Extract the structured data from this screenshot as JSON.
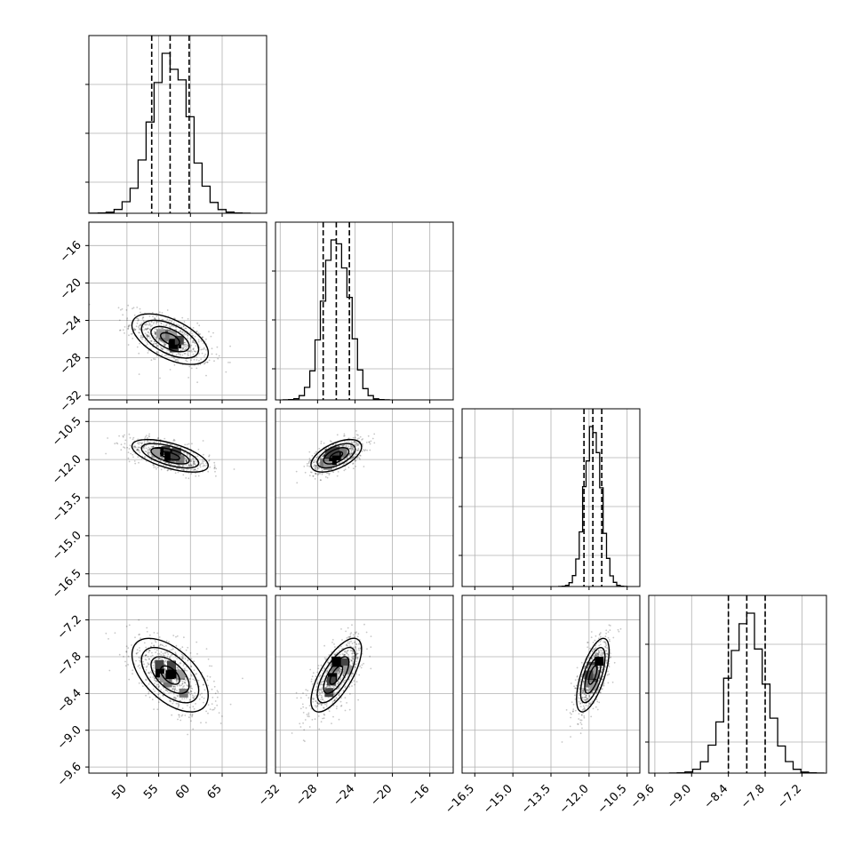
{
  "chart_data": {
    "type": "corner",
    "description_free": true,
    "parameters": [
      {
        "key": "p0",
        "range": [
          44,
          72
        ],
        "ticks": [
          50,
          55,
          60,
          65
        ],
        "tick_labels": [
          "50",
          "55",
          "60",
          "65"
        ],
        "mean": 56.8,
        "std": 3.0,
        "quantiles": [
          53.9,
          56.8,
          59.8
        ]
      },
      {
        "key": "p1",
        "range": [
          -32.5,
          -13.5
        ],
        "ticks": [
          -32,
          -28,
          -24,
          -20,
          -16
        ],
        "tick_labels": [
          "−32",
          "−28",
          "−24",
          "−20",
          "−16"
        ],
        "mean": -26.0,
        "std": 1.35,
        "quantiles": [
          -27.4,
          -26.0,
          -24.6
        ]
      },
      {
        "key": "p2",
        "range": [
          -17.0,
          -10.0
        ],
        "ticks": [
          -16.5,
          -15.0,
          -13.5,
          -12.0,
          -10.5
        ],
        "tick_labels": [
          "−16.5",
          "−15.0",
          "−13.5",
          "−12.0",
          "−10.5"
        ],
        "mean": -11.85,
        "std": 0.32,
        "quantiles": [
          -12.2,
          -11.85,
          -11.5
        ]
      },
      {
        "key": "p3",
        "range": [
          -9.7,
          -6.8
        ],
        "ticks": [
          -9.6,
          -9.0,
          -8.4,
          -7.8,
          -7.2
        ],
        "tick_labels": [
          "−9.6",
          "−9.0",
          "−8.4",
          "−7.8",
          "−7.2"
        ],
        "mean": -8.1,
        "std": 0.3,
        "quantiles": [
          -8.4,
          -8.1,
          -7.8
        ]
      }
    ],
    "correlations": [
      [
        1.0,
        -0.55,
        -0.6,
        -0.55
      ],
      [
        -0.55,
        1.0,
        0.55,
        0.7
      ],
      [
        -0.6,
        0.55,
        1.0,
        0.65
      ],
      [
        -0.55,
        0.7,
        0.65,
        1.0
      ]
    ],
    "histogram_bins": 20,
    "contour_levels": [
      0.5,
      1.0,
      1.5,
      2.0
    ],
    "grid": true,
    "colors": {
      "ink": "#000000",
      "grid": "#b0b0b0",
      "frame": "#000000"
    }
  }
}
